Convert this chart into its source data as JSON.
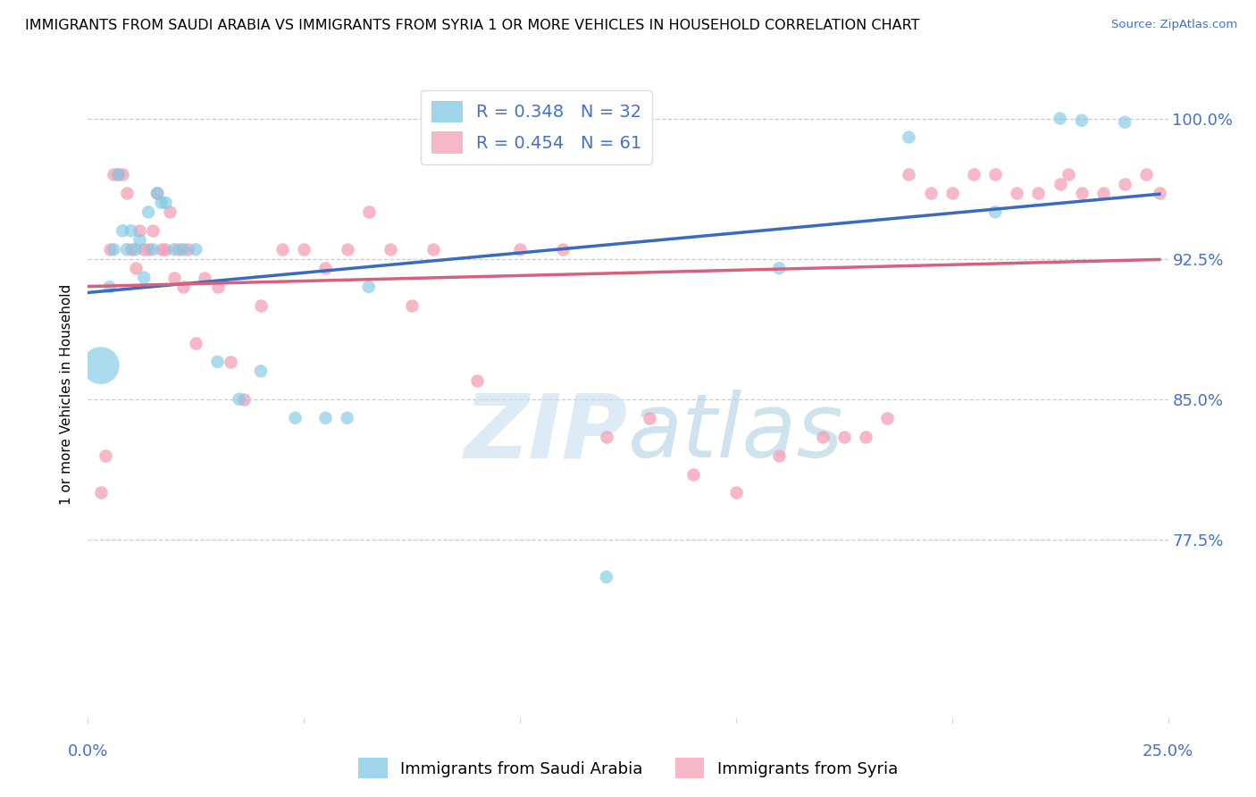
{
  "title": "IMMIGRANTS FROM SAUDI ARABIA VS IMMIGRANTS FROM SYRIA 1 OR MORE VEHICLES IN HOUSEHOLD CORRELATION CHART",
  "source": "Source: ZipAtlas.com",
  "ylabel": "1 or more Vehicles in Household",
  "ytick_labels": [
    "100.0%",
    "92.5%",
    "85.0%",
    "77.5%"
  ],
  "ytick_values": [
    1.0,
    0.925,
    0.85,
    0.775
  ],
  "xlim": [
    0.0,
    0.25
  ],
  "ylim": [
    0.68,
    1.025
  ],
  "saudi_R": 0.348,
  "saudi_N": 32,
  "syria_R": 0.454,
  "syria_N": 61,
  "saudi_color": "#7ec8e3",
  "syria_color": "#f4a0b5",
  "saudi_line_color": "#3a6bbf",
  "syria_line_color": "#d9607a",
  "legend_label_saudi": "Immigrants from Saudi Arabia",
  "legend_label_syria": "Immigrants from Syria",
  "watermark_zip": "ZIP",
  "watermark_atlas": "atlas",
  "saudi_x": [
    0.003,
    0.005,
    0.006,
    0.007,
    0.008,
    0.009,
    0.01,
    0.011,
    0.012,
    0.013,
    0.014,
    0.015,
    0.016,
    0.017,
    0.018,
    0.02,
    0.022,
    0.025,
    0.03,
    0.035,
    0.04,
    0.048,
    0.055,
    0.06,
    0.065,
    0.12,
    0.16,
    0.19,
    0.21,
    0.225,
    0.23,
    0.24
  ],
  "saudi_y": [
    0.868,
    0.91,
    0.93,
    0.97,
    0.94,
    0.93,
    0.94,
    0.93,
    0.935,
    0.915,
    0.95,
    0.93,
    0.96,
    0.955,
    0.955,
    0.93,
    0.93,
    0.93,
    0.87,
    0.85,
    0.865,
    0.84,
    0.84,
    0.84,
    0.91,
    0.755,
    0.92,
    0.99,
    0.95,
    1.0,
    0.999,
    0.998
  ],
  "saudi_large_idx": [
    0
  ],
  "syria_x": [
    0.003,
    0.004,
    0.005,
    0.006,
    0.007,
    0.008,
    0.009,
    0.01,
    0.011,
    0.012,
    0.013,
    0.014,
    0.015,
    0.016,
    0.017,
    0.018,
    0.019,
    0.02,
    0.021,
    0.022,
    0.023,
    0.025,
    0.027,
    0.03,
    0.033,
    0.036,
    0.04,
    0.045,
    0.05,
    0.055,
    0.06,
    0.065,
    0.07,
    0.075,
    0.08,
    0.09,
    0.1,
    0.11,
    0.12,
    0.13,
    0.14,
    0.15,
    0.16,
    0.17,
    0.175,
    0.18,
    0.185,
    0.19,
    0.195,
    0.2,
    0.205,
    0.21,
    0.215,
    0.22,
    0.225,
    0.227,
    0.23,
    0.235,
    0.24,
    0.245,
    0.248
  ],
  "syria_y": [
    0.8,
    0.82,
    0.93,
    0.97,
    0.97,
    0.97,
    0.96,
    0.93,
    0.92,
    0.94,
    0.93,
    0.93,
    0.94,
    0.96,
    0.93,
    0.93,
    0.95,
    0.915,
    0.93,
    0.91,
    0.93,
    0.88,
    0.915,
    0.91,
    0.87,
    0.85,
    0.9,
    0.93,
    0.93,
    0.92,
    0.93,
    0.95,
    0.93,
    0.9,
    0.93,
    0.86,
    0.93,
    0.93,
    0.83,
    0.84,
    0.81,
    0.8,
    0.82,
    0.83,
    0.83,
    0.83,
    0.84,
    0.97,
    0.96,
    0.96,
    0.97,
    0.97,
    0.96,
    0.96,
    0.965,
    0.97,
    0.96,
    0.96,
    0.965,
    0.97,
    0.96
  ],
  "line_x_start": 0.0,
  "line_x_end": 0.248
}
